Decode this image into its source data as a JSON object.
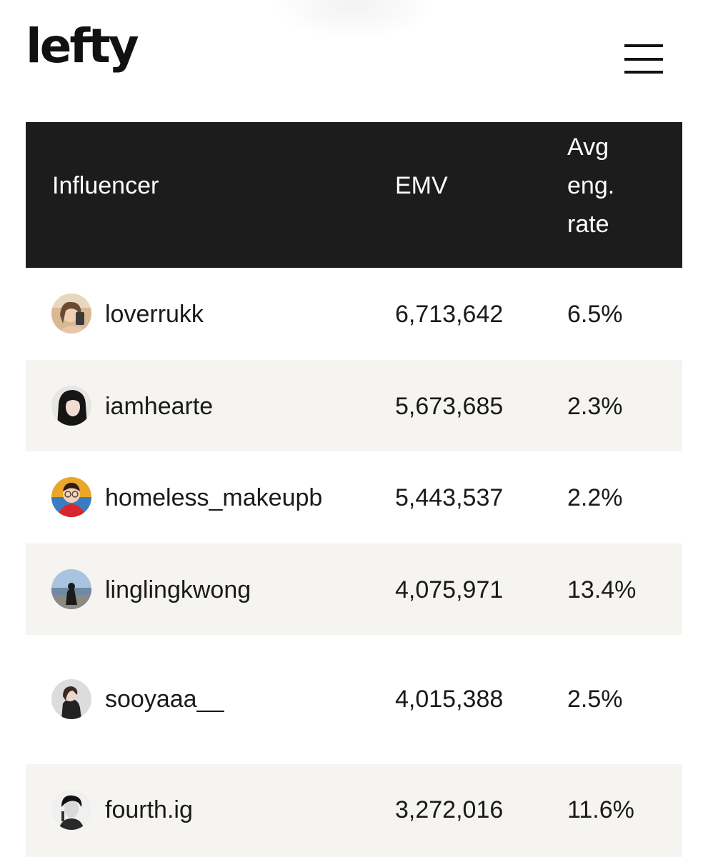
{
  "header": {
    "logo_text": "lefty"
  },
  "table": {
    "columns": {
      "influencer": "Influencer",
      "emv": "EMV",
      "rate_line1": "Avg",
      "rate_line2": "eng.",
      "rate_line3": "rate"
    },
    "rows": [
      {
        "username": "loverrukk",
        "emv": "6,713,642",
        "rate": "6.5%"
      },
      {
        "username": "iamhearte",
        "emv": "5,673,685",
        "rate": "2.3%"
      },
      {
        "username": "homeless_makeupb",
        "emv": "5,443,537",
        "rate": "2.2%"
      },
      {
        "username": "linglingkwong",
        "emv": "4,075,971",
        "rate": "13.4%"
      },
      {
        "username": "sooyaaa__",
        "emv": "4,015,388",
        "rate": "2.5%"
      },
      {
        "username": "fourth.ig",
        "emv": "3,272,016",
        "rate": "11.6%"
      }
    ]
  },
  "colors": {
    "header_bg": "#1c1c1c",
    "alt_row_bg": "#f5f4f1",
    "text": "#1a1a1a"
  }
}
